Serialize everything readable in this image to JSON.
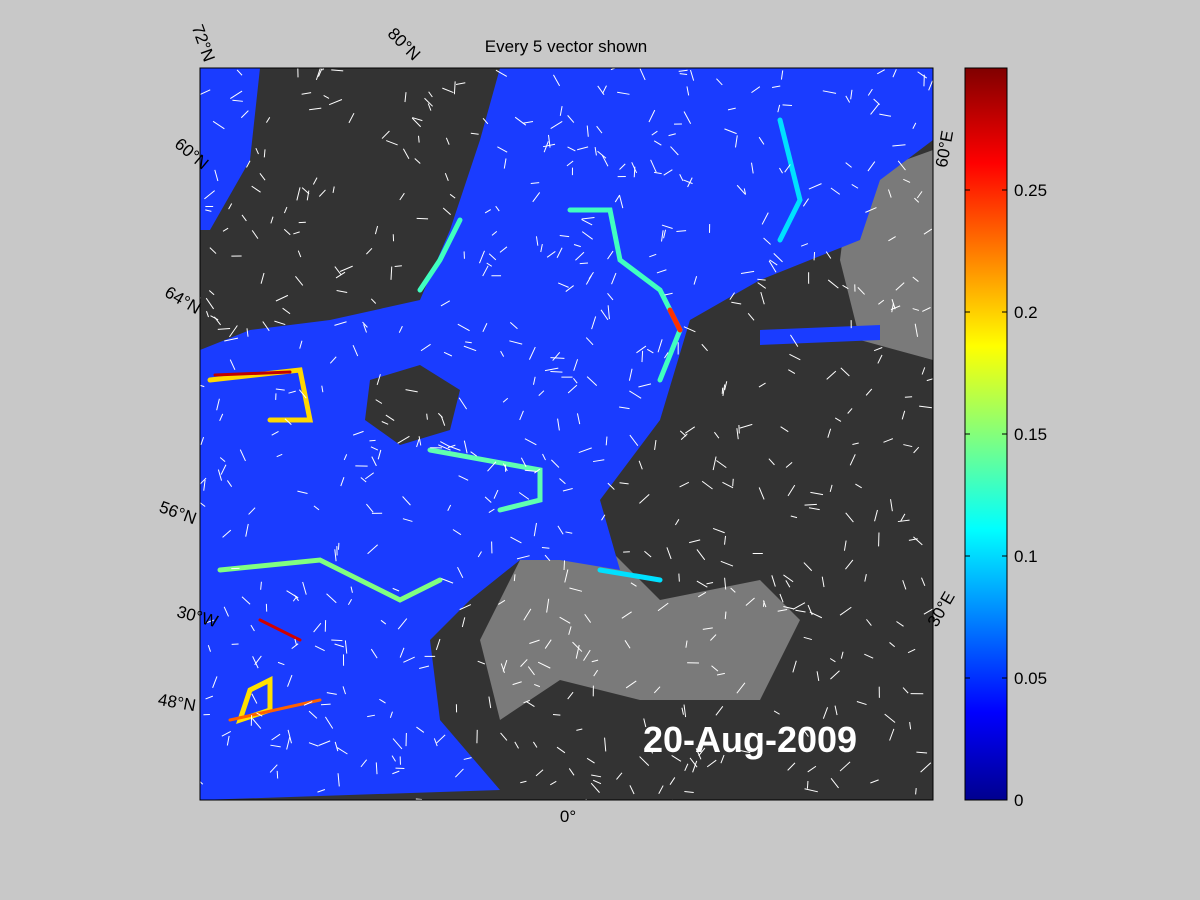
{
  "title": "Every 5 vector shown",
  "date": "20-Aug-2009",
  "graticule_labels": {
    "lat": [
      "72°N",
      "80°N",
      "60°N",
      "64°N",
      "56°N",
      "48°N"
    ],
    "lon": [
      "30°W",
      "0°",
      "30°E",
      "60°E"
    ]
  },
  "colorbar": {
    "lim": [
      0,
      0.3
    ],
    "ticks": [
      0,
      0.05,
      0.1,
      0.15,
      0.2,
      0.25
    ]
  }
}
